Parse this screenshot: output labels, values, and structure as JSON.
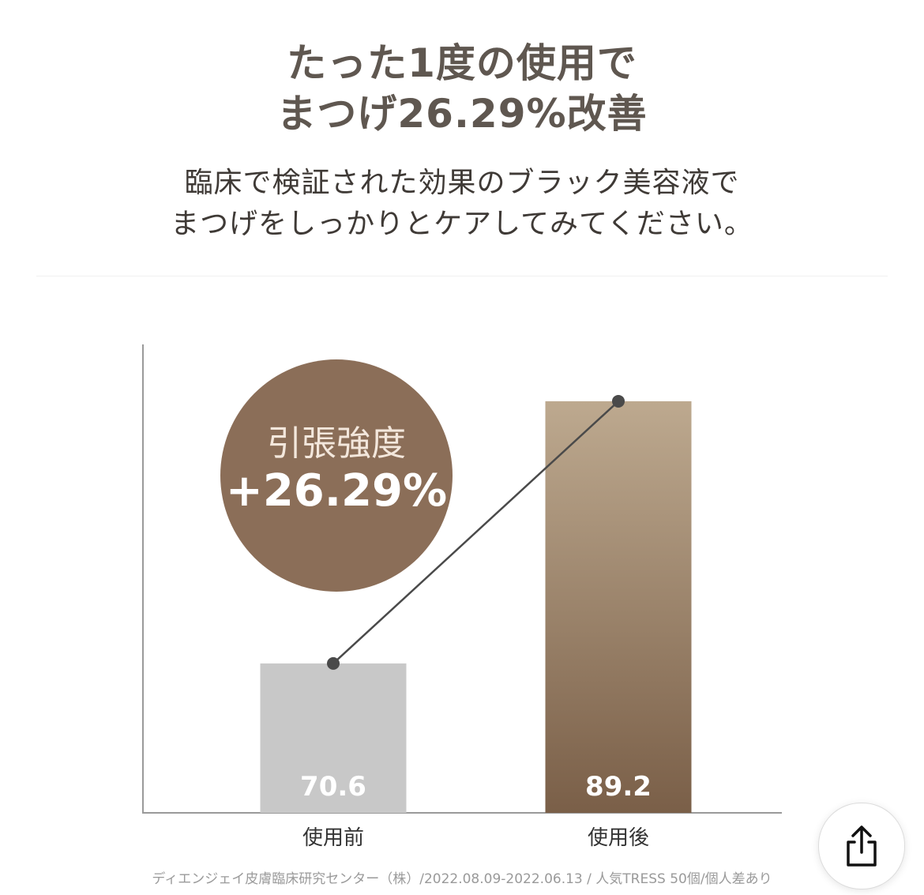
{
  "headline": {
    "line1": "たった1度の使用で",
    "line2": "まつげ26.29%改善"
  },
  "subtext": {
    "line1": "臨床で検証された効果のブラック美容液で",
    "line2": "まつげをしっかりとケアしてみてください。"
  },
  "chart_data": {
    "type": "bar",
    "categories": [
      "使用前",
      "使用後"
    ],
    "values": [
      70.6,
      89.2
    ],
    "value_labels": [
      "70.6",
      "89.2"
    ],
    "badge": {
      "label": "引張強度",
      "value": "+26.29%"
    },
    "colors": {
      "before": "#c8c8c8",
      "after_top": "#bda98f",
      "after_bottom": "#7a5f48",
      "badge": "#8b6e58",
      "line": "#4a4a4a"
    },
    "grid": false,
    "trend_line": true
  },
  "source_note": "ディエンジェイ皮膚臨床研究センター（株）/2022.08.09-2022.06.13 / 人気TRESS 50個/個人差あり",
  "share_button": {
    "icon": "share-icon"
  }
}
